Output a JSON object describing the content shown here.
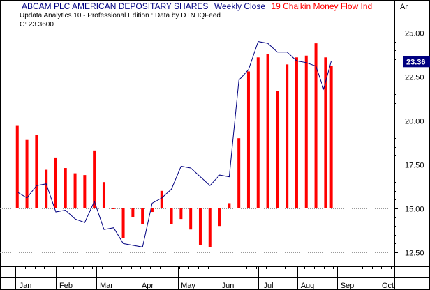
{
  "chart_data": {
    "type": "bar+line",
    "title": {
      "symbol": "ABCAM PLC AMERICAN DEPOSITARY SHARES",
      "price_series": "Weekly Close",
      "indicator": "19 Chaikin Money Flow Ind"
    },
    "subtitle": "Updata Analytics 10 - Professional Edition : Data by DTN IQFeed",
    "close_label": "C: 23.3600",
    "corner_label": "Ar",
    "last_value_badge": "23.36",
    "colors": {
      "price_line": "#000080",
      "indicator_bars": "#ff0000",
      "badge_bg": "#000080",
      "title_indicator": "#ff0000",
      "grid": "#999999"
    },
    "ylim": [
      11.7,
      25.9
    ],
    "indicator_baseline": 15.0,
    "y_ticks": [
      {
        "value": 25.0,
        "label": "25.00"
      },
      {
        "value": 22.5,
        "label": "22.50"
      },
      {
        "value": 20.0,
        "label": "20.00"
      },
      {
        "value": 17.5,
        "label": "17.50"
      },
      {
        "value": 15.0,
        "label": "15.00"
      },
      {
        "value": 12.5,
        "label": "12.50"
      }
    ],
    "x_ticks": [
      {
        "week": 1.0,
        "label": "Jan"
      },
      {
        "week": 5.2,
        "label": "Feb"
      },
      {
        "week": 9.4,
        "label": "Mar"
      },
      {
        "week": 13.7,
        "label": "Apr"
      },
      {
        "week": 17.9,
        "label": "May"
      },
      {
        "week": 22.0,
        "label": "Jun"
      },
      {
        "week": 26.2,
        "label": "Jul"
      },
      {
        "week": 30.3,
        "label": "Aug"
      },
      {
        "week": 34.4,
        "label": "Sep"
      },
      {
        "week": 38.6,
        "label": "Oct"
      }
    ],
    "xlim": [
      0,
      40.9
    ],
    "series": [
      {
        "name": "Weekly Close",
        "kind": "line",
        "x": [
          0.3,
          1.2,
          2.2,
          3.2,
          4.2,
          5.2,
          6.2,
          7.2,
          8.2,
          9.2,
          10.2,
          11.2,
          12.2,
          13.2,
          14.2,
          15.2,
          16.2,
          17.2,
          18.2,
          19.2,
          20.2,
          21.2,
          22.2,
          23.2,
          24.2,
          25.2,
          26.2,
          27.2,
          28.2,
          29.2,
          30.2,
          31.2,
          32.0
        ],
        "values": [
          15.9,
          15.6,
          16.3,
          16.4,
          14.8,
          14.9,
          14.4,
          14.2,
          15.4,
          13.8,
          13.9,
          13.0,
          12.9,
          12.8,
          15.3,
          15.6,
          16.1,
          17.4,
          17.3,
          16.8,
          16.3,
          16.9,
          16.8,
          22.3,
          22.9,
          24.5,
          24.4,
          23.9,
          23.9,
          23.4,
          23.3,
          23.1,
          21.8
        ]
      },
      {
        "name": "19 Chaikin Money Flow Ind",
        "kind": "bar",
        "x": [
          0.2,
          1.2,
          2.2,
          3.2,
          4.2,
          5.2,
          6.2,
          7.2,
          8.2,
          9.2,
          10.2,
          11.2,
          12.2,
          13.2,
          14.2,
          15.2,
          16.2,
          17.2,
          18.2,
          19.2,
          20.2,
          21.2,
          22.2,
          23.2,
          24.2,
          25.2,
          26.2,
          27.2,
          28.2,
          29.2,
          30.2,
          31.2,
          32.2
        ],
        "values": [
          19.7,
          18.9,
          19.2,
          17.2,
          17.9,
          17.3,
          17.0,
          16.9,
          18.3,
          16.5,
          15.0,
          13.3,
          14.5,
          14.1,
          14.8,
          16.0,
          14.1,
          14.4,
          13.8,
          12.9,
          12.8,
          14.0,
          15.3,
          19.0,
          22.8,
          23.6,
          23.8,
          21.7,
          23.2,
          23.6,
          23.7,
          24.4,
          23.6
        ]
      }
    ],
    "last_segment": {
      "x": [
        32.0,
        32.8
      ],
      "values": [
        21.8,
        23.4
      ]
    },
    "last_bar": {
      "x": 32.8,
      "value": 23.1
    },
    "grid": true,
    "legend": "none"
  }
}
